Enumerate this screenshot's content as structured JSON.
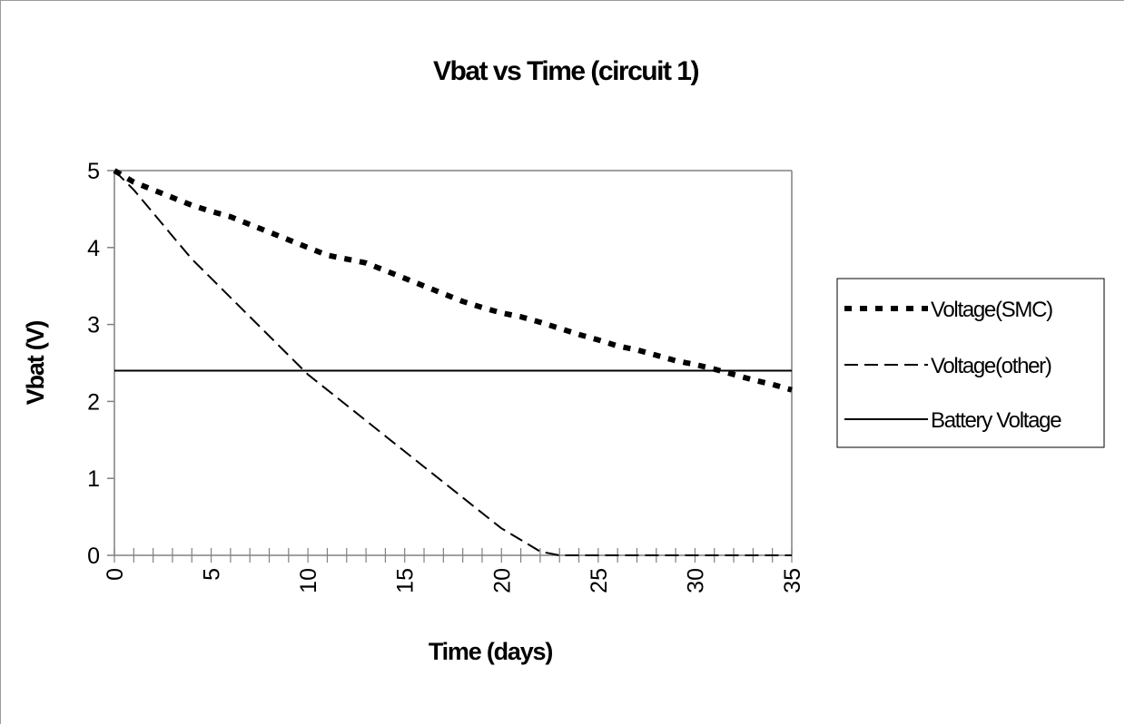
{
  "chart_data": {
    "type": "line",
    "title": "Vbat vs Time (circuit 1)",
    "xlabel": "Time (days)",
    "ylabel": "Vbat (V)",
    "xlim": [
      0,
      35
    ],
    "ylim": [
      0,
      5
    ],
    "x_ticks": [
      "0",
      "5",
      "10",
      "15",
      "20",
      "25",
      "30",
      "35"
    ],
    "y_ticks": [
      "0",
      "1",
      "2",
      "3",
      "4",
      "5"
    ],
    "grid": false,
    "legend_position": "right",
    "series": [
      {
        "name": "Voltage(SMC)",
        "style": "dotted",
        "x": [
          0,
          1,
          2,
          3,
          4,
          5,
          6,
          7,
          8,
          9,
          10,
          11,
          12,
          13,
          14,
          15,
          16,
          17,
          18,
          19,
          20,
          21,
          22,
          23,
          24,
          25,
          26,
          27,
          28,
          29,
          30,
          31,
          32,
          33,
          34,
          35
        ],
        "values": [
          5.0,
          4.85,
          4.75,
          4.65,
          4.55,
          4.47,
          4.4,
          4.3,
          4.2,
          4.1,
          4.0,
          3.9,
          3.85,
          3.8,
          3.7,
          3.6,
          3.5,
          3.4,
          3.3,
          3.22,
          3.15,
          3.1,
          3.03,
          2.95,
          2.87,
          2.8,
          2.72,
          2.67,
          2.6,
          2.53,
          2.48,
          2.42,
          2.35,
          2.28,
          2.22,
          2.15
        ]
      },
      {
        "name": "Voltage(other)",
        "style": "dashed",
        "x": [
          0,
          1,
          2,
          3,
          4,
          5,
          6,
          7,
          8,
          9,
          10,
          11,
          12,
          13,
          14,
          15,
          16,
          17,
          18,
          19,
          20,
          21,
          22,
          23,
          24,
          25,
          26,
          27,
          28,
          29,
          30,
          31,
          32,
          33,
          34,
          35
        ],
        "values": [
          5.0,
          4.75,
          4.45,
          4.15,
          3.85,
          3.6,
          3.35,
          3.1,
          2.85,
          2.6,
          2.35,
          2.15,
          1.95,
          1.75,
          1.55,
          1.35,
          1.15,
          0.95,
          0.75,
          0.55,
          0.35,
          0.2,
          0.05,
          0.0,
          0.0,
          0.0,
          0.0,
          0.0,
          0.0,
          0.0,
          0.0,
          0.0,
          0.0,
          0.0,
          0.0,
          0.0
        ]
      },
      {
        "name": "Battery Voltage",
        "style": "solid",
        "x": [
          0,
          35
        ],
        "values": [
          2.4,
          2.4
        ]
      }
    ],
    "colors": {
      "line": "#000000",
      "axis": "#808080",
      "frame": "#808080"
    }
  }
}
